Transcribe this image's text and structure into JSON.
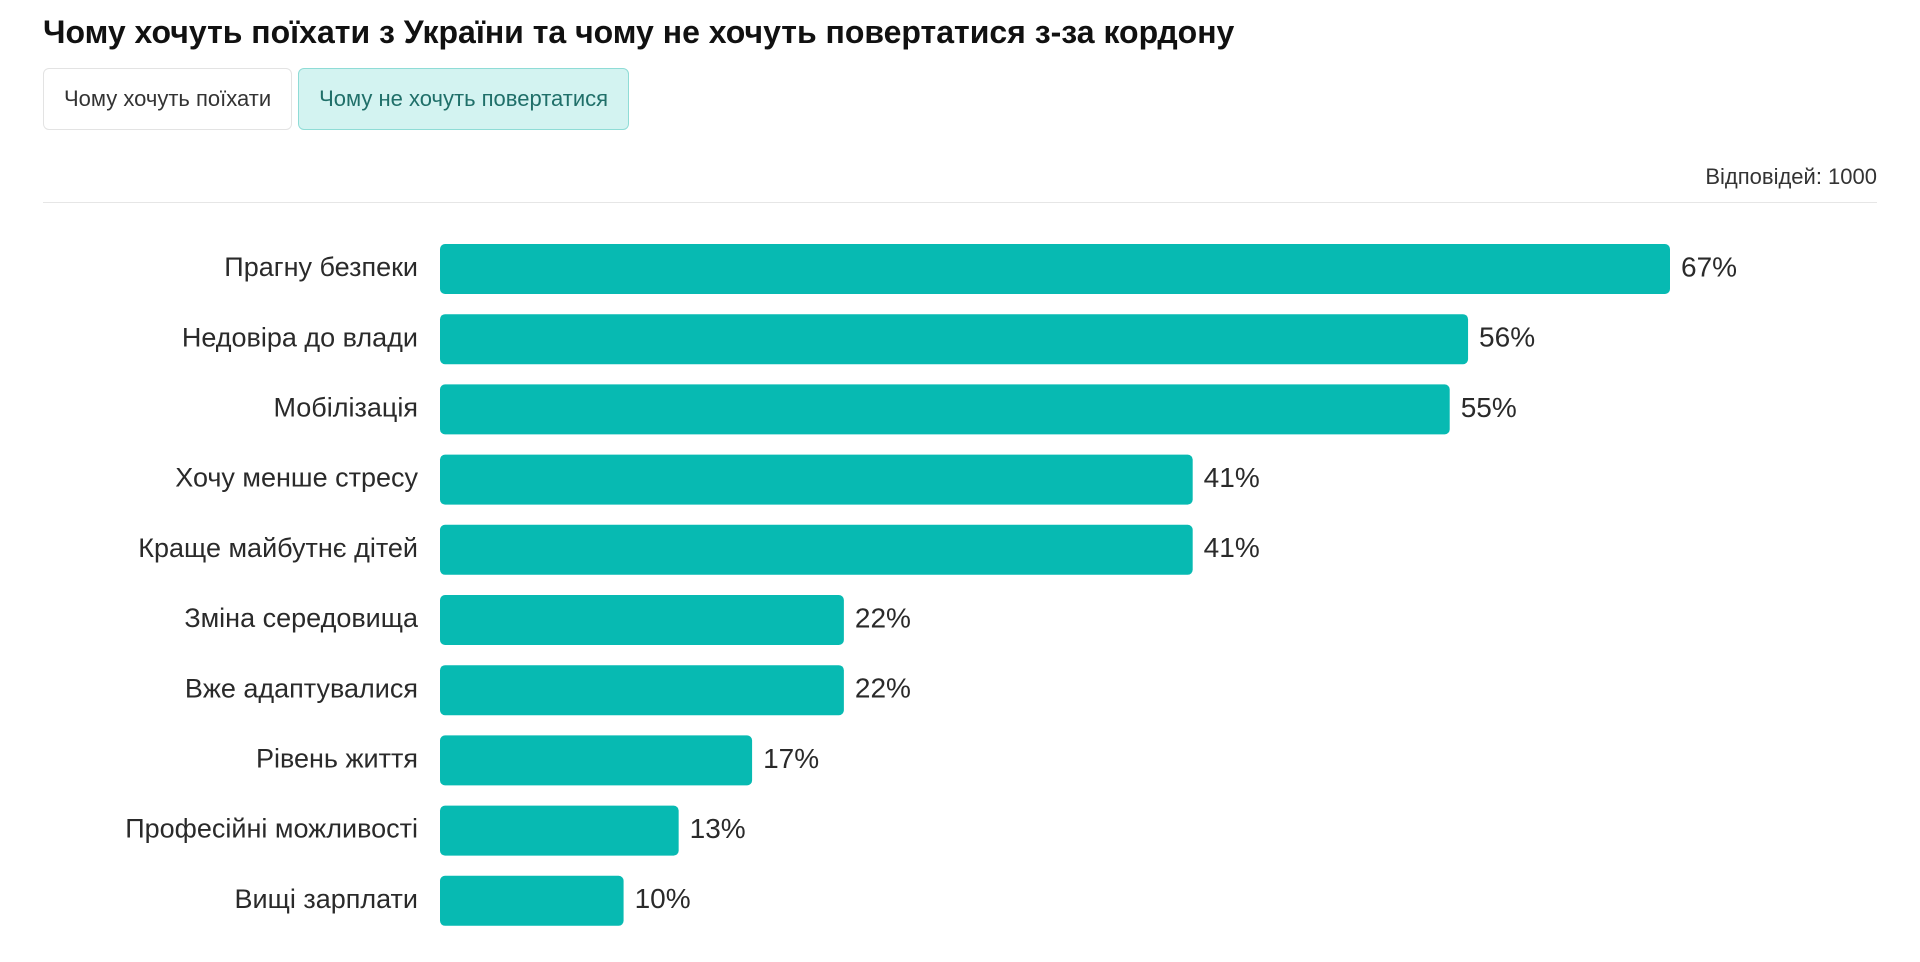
{
  "header": {
    "title": "Чому хочуть поїхати з України та чому не хочуть повертатися з-за кордону"
  },
  "tabs": [
    {
      "label": "Чому хочуть поїхати",
      "active": false
    },
    {
      "label": "Чому не хочуть повертатися",
      "active": true
    }
  ],
  "responses_label": "Відповідей: 1000",
  "colors": {
    "bar": "#07bab2",
    "active_tab_bg": "#d3f3f1"
  },
  "chart_data": {
    "type": "bar",
    "orientation": "horizontal",
    "title": "Чому хочуть поїхати з України та чому не хочуть повертатися з-за кордону",
    "categories": [
      "Прагну безпеки",
      "Недовіра до влади",
      "Мобілізація",
      "Хочу менше стресу",
      "Краще майбутнє дітей",
      "Зміна середовища",
      "Вже адаптувалися",
      "Рівень життя",
      "Професійні можливості",
      "Вищі зарплати"
    ],
    "values": [
      67,
      56,
      55,
      41,
      41,
      22,
      22,
      17,
      13,
      10
    ],
    "value_labels": [
      "67%",
      "56%",
      "55%",
      "41%",
      "41%",
      "22%",
      "22%",
      "17%",
      "13%",
      "10%"
    ],
    "unit": "%",
    "xlim": [
      0,
      67
    ],
    "grid": false,
    "legend": "none"
  }
}
